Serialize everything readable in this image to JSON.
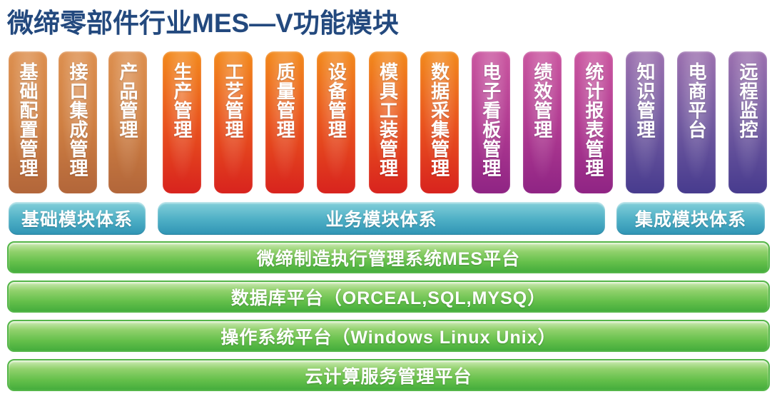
{
  "title": "微缔零部件行业MES—V功能模块",
  "title_color": "#23497e",
  "palette": {
    "brown": {
      "top": "#dd9050",
      "mid": "#cf7f42",
      "bottom": "#b2663a"
    },
    "red": {
      "top": "#f28a1d",
      "mid": "#e9531e",
      "bottom": "#d8231e"
    },
    "magenta": {
      "top": "#ca57a0",
      "mid": "#b13b92",
      "bottom": "#8f2484"
    },
    "purple": {
      "top": "#9d72b0",
      "mid": "#715aa0",
      "bottom": "#473b8e"
    },
    "tier_bar": {
      "top": "#84d0da",
      "mid": "#4fb0c6",
      "bottom": "#2f94b4"
    },
    "platform_bar": {
      "top": "#cdeab4",
      "mid": "#90d16c",
      "bottom": "#45ad3d",
      "border": "#55b649"
    }
  },
  "module_groups": [
    {
      "id": "basic",
      "tier_label": "基础模块体系",
      "columns": [
        {
          "label": "基础配置管理",
          "color": "brown"
        },
        {
          "label": "接口集成管理",
          "color": "brown"
        },
        {
          "label": "产品管理",
          "color": "brown"
        }
      ]
    },
    {
      "id": "business",
      "tier_label": "业务模块体系",
      "columns": [
        {
          "label": "生产管理",
          "color": "red"
        },
        {
          "label": "工艺管理",
          "color": "red"
        },
        {
          "label": "质量管理",
          "color": "red"
        },
        {
          "label": "设备管理",
          "color": "red"
        },
        {
          "label": "模具工装管理",
          "color": "red"
        },
        {
          "label": "数据采集管理",
          "color": "red"
        },
        {
          "label": "电子看板管理",
          "color": "magenta"
        },
        {
          "label": "绩效管理",
          "color": "magenta"
        },
        {
          "label": "统计报表管理",
          "color": "magenta"
        }
      ]
    },
    {
      "id": "integration",
      "tier_label": "集成模块体系",
      "columns": [
        {
          "label": "知识管理",
          "color": "purple"
        },
        {
          "label": "电商平台",
          "color": "purple"
        },
        {
          "label": "远程监控",
          "color": "purple"
        }
      ]
    }
  ],
  "platform_layers": [
    "微缔制造执行管理系统MES平台",
    "数据库平台（ORCEAL,SQL,MYSQ）",
    "操作系统平台（Windows Linux Unix）",
    "云计算服务管理平台"
  ]
}
